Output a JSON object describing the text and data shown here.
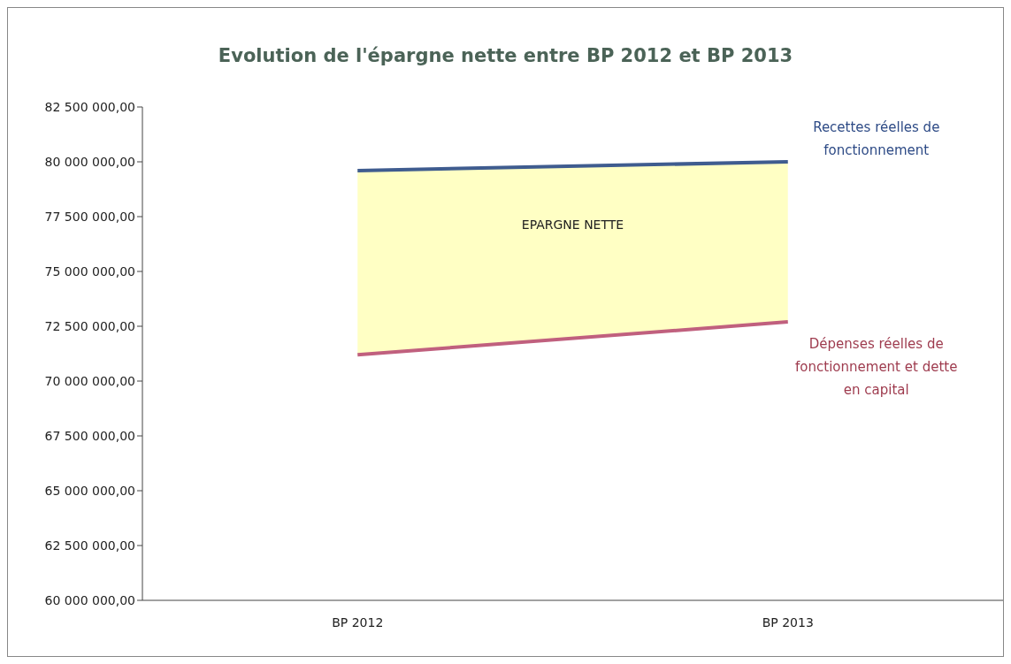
{
  "chart_data": {
    "type": "line",
    "title": "Evolution de l'épargne nette entre  BP 2012 et BP 2013",
    "categories": [
      "BP 2012",
      "BP 2013"
    ],
    "series": [
      {
        "name": "Recettes réelles de fonctionnement",
        "color": "#3f5c8f",
        "values": [
          79600000,
          80000000
        ],
        "lower": [
          71200000,
          72700000
        ],
        "upper": [
          79600000,
          80000000
        ]
      },
      {
        "name": "Dépenses réelles de fonctionnement et dette en capital",
        "color": "#c0607e",
        "values": [
          71200000,
          72700000
        ]
      }
    ],
    "annotations": [
      "EPARGNE NETTE"
    ],
    "ylim": [
      60000000,
      82500000
    ],
    "yticks": [
      {
        "value": 60000000,
        "label": "60 000 000,00"
      },
      {
        "value": 62500000,
        "label": "62 500 000,00"
      },
      {
        "value": 65000000,
        "label": "65 000 000,00"
      },
      {
        "value": 67500000,
        "label": "67 500 000,00"
      },
      {
        "value": 70000000,
        "label": "70 000 000,00"
      },
      {
        "value": 72500000,
        "label": "72 500 000,00"
      },
      {
        "value": 75000000,
        "label": "75 000 000,00"
      },
      {
        "value": 77500000,
        "label": "77 500 000,00"
      },
      {
        "value": 80000000,
        "label": "80 000 000,00"
      },
      {
        "value": 82500000,
        "label": "82 500 000,00"
      }
    ],
    "grid": false,
    "legend": false,
    "marker": "none",
    "line_style": "solid"
  }
}
